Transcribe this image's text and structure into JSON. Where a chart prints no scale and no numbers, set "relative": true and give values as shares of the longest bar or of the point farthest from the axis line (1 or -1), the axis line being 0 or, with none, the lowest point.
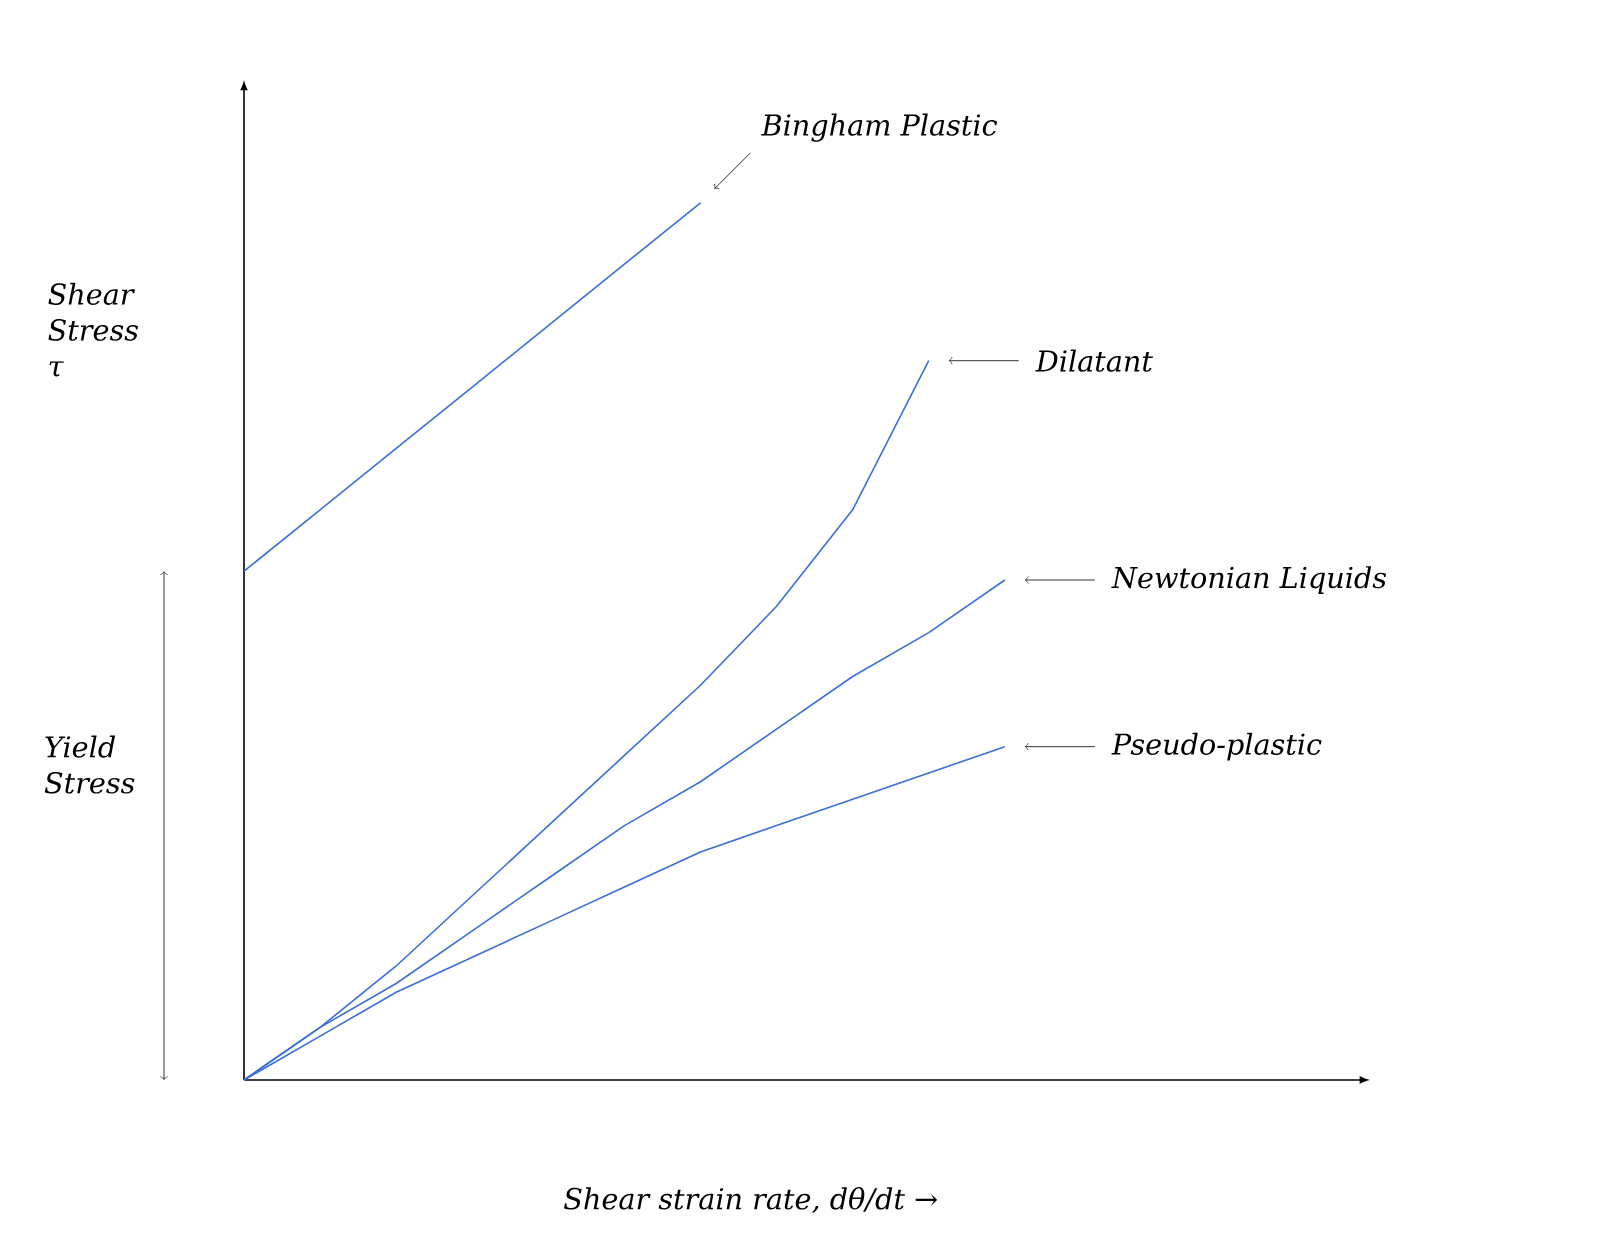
{
  "chart_data": {
    "type": "line",
    "relative": true,
    "xlabel": "Shear strain rate, dθ/dt →",
    "ylabel": "Shear Stress τ",
    "categories": [
      null,
      null,
      null,
      null,
      null,
      null,
      null,
      null,
      null,
      null,
      null
    ],
    "series": [
      {
        "name": "Bingham Plastic",
        "color": "#3a6fd8",
        "values": [
          0.58,
          0.65,
          0.72,
          0.79,
          0.86,
          0.93,
          1.0,
          null,
          null,
          null,
          null
        ]
      },
      {
        "name": "Dilatant",
        "color": "#3a6fd8",
        "values": [
          0,
          0.06,
          0.13,
          0.21,
          0.29,
          0.37,
          0.45,
          0.54,
          0.65,
          0.82,
          null
        ]
      },
      {
        "name": "Newtonian Liquids",
        "color": "#3a6fd8",
        "values": [
          0,
          0.06,
          0.11,
          0.17,
          0.23,
          0.29,
          0.34,
          0.4,
          0.46,
          0.51,
          0.57
        ]
      },
      {
        "name": "Pseudo-plastic",
        "color": "#3a6fd8",
        "values": [
          0,
          0.05,
          0.1,
          0.14,
          0.18,
          0.22,
          0.26,
          0.29,
          0.32,
          0.35,
          0.38
        ]
      }
    ],
    "annotations": [
      "Yield Stress"
    ]
  }
}
